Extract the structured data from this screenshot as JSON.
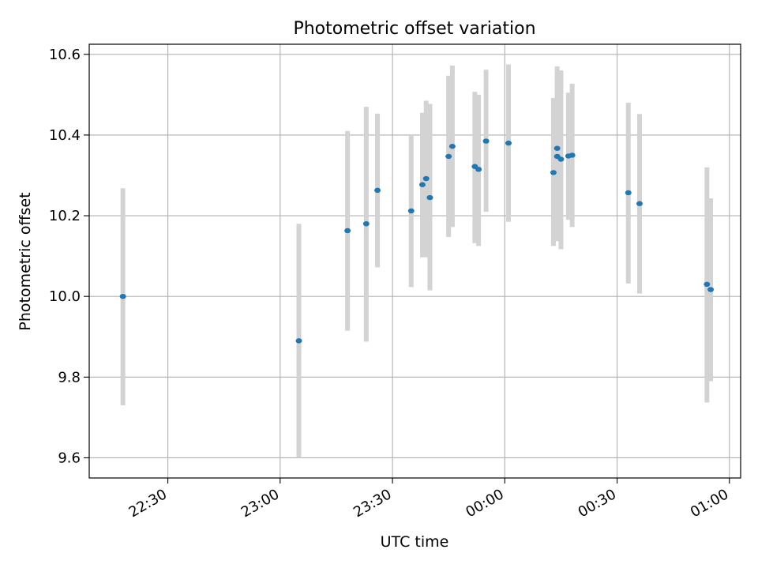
{
  "chart_data": {
    "type": "scatter",
    "title": "Photometric offset variation",
    "xlabel": "UTC time",
    "ylabel": "Photometric offset",
    "x_tick_labels": [
      "22:30",
      "23:00",
      "23:30",
      "00:00",
      "00:30",
      "01:00"
    ],
    "x_tick_minutes": [
      1350,
      1380,
      1410,
      1440,
      1470,
      1500
    ],
    "xlim": [
      "22:09",
      "01:03"
    ],
    "y_tick_labels": [
      "9.6",
      "9.8",
      "10.0",
      "10.2",
      "10.4",
      "10.6"
    ],
    "y_ticks": [
      9.6,
      9.8,
      10.0,
      10.2,
      10.4,
      10.6
    ],
    "ylim": [
      9.55,
      10.625
    ],
    "grid": true,
    "point_color": "#1f77b4",
    "errorbar_color": "#d3d3d3",
    "series": [
      {
        "points": [
          {
            "time": "22:18",
            "y": 10.0,
            "lo": 9.73,
            "hi": 10.268
          },
          {
            "time": "23:05",
            "y": 9.89,
            "lo": 9.6,
            "hi": 10.18
          },
          {
            "time": "23:18",
            "y": 10.163,
            "lo": 9.915,
            "hi": 10.41
          },
          {
            "time": "23:23",
            "y": 10.18,
            "lo": 9.888,
            "hi": 10.47
          },
          {
            "time": "23:26",
            "y": 10.263,
            "lo": 10.072,
            "hi": 10.453
          },
          {
            "time": "23:35",
            "y": 10.212,
            "lo": 10.023,
            "hi": 10.4
          },
          {
            "time": "23:38",
            "y": 10.277,
            "lo": 10.097,
            "hi": 10.455
          },
          {
            "time": "23:39",
            "y": 10.292,
            "lo": 10.097,
            "hi": 10.485
          },
          {
            "time": "23:40",
            "y": 10.245,
            "lo": 10.015,
            "hi": 10.477
          },
          {
            "time": "23:45",
            "y": 10.347,
            "lo": 10.147,
            "hi": 10.547
          },
          {
            "time": "23:46",
            "y": 10.372,
            "lo": 10.172,
            "hi": 10.572
          },
          {
            "time": "23:52",
            "y": 10.322,
            "lo": 10.132,
            "hi": 10.507
          },
          {
            "time": "23:53",
            "y": 10.315,
            "lo": 10.125,
            "hi": 10.5
          },
          {
            "time": "23:55",
            "y": 10.385,
            "lo": 10.21,
            "hi": 10.562
          },
          {
            "time": "00:01",
            "y": 10.38,
            "lo": 10.185,
            "hi": 10.575
          },
          {
            "time": "00:13",
            "y": 10.307,
            "lo": 10.125,
            "hi": 10.492
          },
          {
            "time": "00:14",
            "y": 10.347,
            "lo": 10.137,
            "hi": 10.555
          },
          {
            "time": "00:14",
            "y": 10.367,
            "lo": 10.165,
            "hi": 10.57
          },
          {
            "time": "00:15",
            "y": 10.34,
            "lo": 10.117,
            "hi": 10.56
          },
          {
            "time": "00:17",
            "y": 10.348,
            "lo": 10.19,
            "hi": 10.505
          },
          {
            "time": "00:18",
            "y": 10.35,
            "lo": 10.172,
            "hi": 10.527
          },
          {
            "time": "00:33",
            "y": 10.257,
            "lo": 10.032,
            "hi": 10.48
          },
          {
            "time": "00:36",
            "y": 10.23,
            "lo": 10.007,
            "hi": 10.452
          },
          {
            "time": "00:54",
            "y": 10.03,
            "lo": 9.737,
            "hi": 10.32
          },
          {
            "time": "00:55",
            "y": 10.017,
            "lo": 9.79,
            "hi": 10.243
          }
        ]
      }
    ]
  }
}
